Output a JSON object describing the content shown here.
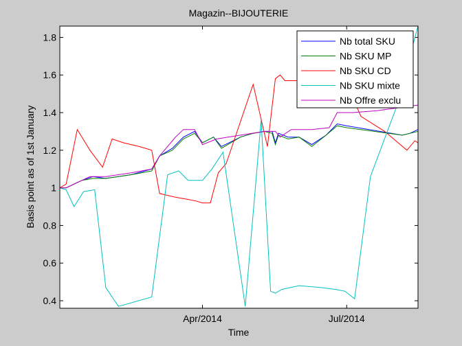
{
  "chart_data": {
    "type": "line",
    "title": "Magazin--BIJOUTERIE",
    "xlabel": "Time",
    "ylabel": "Basis point as of 1st January",
    "xlim": [
      "2014-01-01",
      "2014-08-15"
    ],
    "ylim": [
      0.36,
      1.86
    ],
    "x_ticks": [
      {
        "date": "2014-04-01",
        "label": "Apr/2014"
      },
      {
        "date": "2014-07-01",
        "label": "Jul/2014"
      }
    ],
    "y_ticks": [
      {
        "value": 0.4,
        "label": "0.4"
      },
      {
        "value": 0.6,
        "label": "0.6"
      },
      {
        "value": 0.8,
        "label": "0.8"
      },
      {
        "value": 1.0,
        "label": "1"
      },
      {
        "value": 1.2,
        "label": "1.2"
      },
      {
        "value": 1.4,
        "label": "1.4"
      },
      {
        "value": 1.6,
        "label": "1.6"
      },
      {
        "value": 1.8,
        "label": "1.8"
      }
    ],
    "grid": false,
    "legend_position": "top-right",
    "series": [
      {
        "name": "Nb total SKU",
        "color": "#0000ff",
        "points": [
          [
            "2014-01-01",
            1.0
          ],
          [
            "2014-01-05",
            1.0
          ],
          [
            "2014-01-15",
            1.04
          ],
          [
            "2014-01-22",
            1.06
          ],
          [
            "2014-01-30",
            1.05
          ],
          [
            "2014-02-15",
            1.07
          ],
          [
            "2014-02-28",
            1.1
          ],
          [
            "2014-03-05",
            1.17
          ],
          [
            "2014-03-13",
            1.21
          ],
          [
            "2014-03-20",
            1.27
          ],
          [
            "2014-03-27",
            1.3
          ],
          [
            "2014-04-01",
            1.24
          ],
          [
            "2014-04-08",
            1.27
          ],
          [
            "2014-04-13",
            1.22
          ],
          [
            "2014-04-25",
            1.27
          ],
          [
            "2014-05-03",
            1.29
          ],
          [
            "2014-05-10",
            1.3
          ],
          [
            "2014-05-15",
            1.3
          ],
          [
            "2014-05-17",
            1.24
          ],
          [
            "2014-05-19",
            1.29
          ],
          [
            "2014-05-25",
            1.27
          ],
          [
            "2014-06-01",
            1.27
          ],
          [
            "2014-06-09",
            1.23
          ],
          [
            "2014-06-18",
            1.28
          ],
          [
            "2014-06-25",
            1.34
          ],
          [
            "2014-07-01",
            1.33
          ],
          [
            "2014-08-05",
            1.28
          ],
          [
            "2014-08-10",
            1.29
          ],
          [
            "2014-08-15",
            1.31
          ]
        ]
      },
      {
        "name": "Nb SKU MP",
        "color": "#008000",
        "points": [
          [
            "2014-01-01",
            1.0
          ],
          [
            "2014-01-05",
            1.0
          ],
          [
            "2014-01-15",
            1.04
          ],
          [
            "2014-01-22",
            1.05
          ],
          [
            "2014-01-30",
            1.05
          ],
          [
            "2014-02-15",
            1.07
          ],
          [
            "2014-02-28",
            1.09
          ],
          [
            "2014-03-05",
            1.17
          ],
          [
            "2014-03-13",
            1.2
          ],
          [
            "2014-03-20",
            1.26
          ],
          [
            "2014-03-27",
            1.29
          ],
          [
            "2014-04-01",
            1.24
          ],
          [
            "2014-04-08",
            1.27
          ],
          [
            "2014-04-13",
            1.21
          ],
          [
            "2014-04-25",
            1.27
          ],
          [
            "2014-05-03",
            1.29
          ],
          [
            "2014-05-10",
            1.3
          ],
          [
            "2014-05-15",
            1.29
          ],
          [
            "2014-05-17",
            1.23
          ],
          [
            "2014-05-19",
            1.28
          ],
          [
            "2014-05-25",
            1.26
          ],
          [
            "2014-06-01",
            1.27
          ],
          [
            "2014-06-09",
            1.22
          ],
          [
            "2014-06-18",
            1.28
          ],
          [
            "2014-06-25",
            1.33
          ],
          [
            "2014-07-01",
            1.32
          ],
          [
            "2014-08-05",
            1.28
          ],
          [
            "2014-08-10",
            1.29
          ],
          [
            "2014-08-15",
            1.3
          ]
        ]
      },
      {
        "name": "Nb SKU CD",
        "color": "#ff0000",
        "points": [
          [
            "2014-01-01",
            1.0
          ],
          [
            "2014-01-05",
            1.02
          ],
          [
            "2014-01-12",
            1.31
          ],
          [
            "2014-01-20",
            1.2
          ],
          [
            "2014-01-28",
            1.11
          ],
          [
            "2014-02-03",
            1.26
          ],
          [
            "2014-02-10",
            1.24
          ],
          [
            "2014-02-20",
            1.22
          ],
          [
            "2014-02-28",
            1.2
          ],
          [
            "2014-03-05",
            0.97
          ],
          [
            "2014-03-10",
            0.96
          ],
          [
            "2014-03-15",
            0.95
          ],
          [
            "2014-03-22",
            0.94
          ],
          [
            "2014-03-28",
            0.93
          ],
          [
            "2014-04-01",
            0.92
          ],
          [
            "2014-04-06",
            0.92
          ],
          [
            "2014-04-11",
            1.08
          ],
          [
            "2014-04-16",
            1.13
          ],
          [
            "2014-05-03",
            1.55
          ],
          [
            "2014-05-12",
            1.22
          ],
          [
            "2014-05-17",
            1.58
          ],
          [
            "2014-05-20",
            1.6
          ],
          [
            "2014-05-23",
            1.57
          ],
          [
            "2014-06-01",
            1.57
          ],
          [
            "2014-06-05",
            1.58
          ],
          [
            "2014-06-15",
            1.67
          ],
          [
            "2014-06-25",
            1.6
          ],
          [
            "2014-07-01",
            1.55
          ],
          [
            "2014-07-10",
            1.38
          ],
          [
            "2014-07-25",
            1.3
          ],
          [
            "2014-08-08",
            1.2
          ],
          [
            "2014-08-13",
            1.25
          ],
          [
            "2014-08-15",
            1.24
          ]
        ]
      },
      {
        "name": "Nb SKU mixte",
        "color": "#00c0c0",
        "points": [
          [
            "2014-01-01",
            1.0
          ],
          [
            "2014-01-05",
            0.99
          ],
          [
            "2014-01-10",
            0.9
          ],
          [
            "2014-01-16",
            0.98
          ],
          [
            "2014-01-23",
            0.99
          ],
          [
            "2014-01-30",
            0.47
          ],
          [
            "2014-02-07",
            0.37
          ],
          [
            "2014-02-28",
            0.42
          ],
          [
            "2014-03-10",
            1.07
          ],
          [
            "2014-03-17",
            1.09
          ],
          [
            "2014-03-23",
            1.04
          ],
          [
            "2014-04-01",
            1.04
          ],
          [
            "2014-04-07",
            1.1
          ],
          [
            "2014-04-14",
            1.19
          ],
          [
            "2014-04-28",
            0.37
          ],
          [
            "2014-05-08",
            1.36
          ],
          [
            "2014-05-14",
            0.45
          ],
          [
            "2014-05-17",
            0.44
          ],
          [
            "2014-05-21",
            0.46
          ],
          [
            "2014-06-01",
            0.48
          ],
          [
            "2014-06-15",
            0.47
          ],
          [
            "2014-06-24",
            0.46
          ],
          [
            "2014-06-30",
            0.45
          ],
          [
            "2014-07-06",
            0.41
          ],
          [
            "2014-07-16",
            1.06
          ],
          [
            "2014-08-01",
            1.42
          ],
          [
            "2014-08-15",
            1.86
          ]
        ]
      },
      {
        "name": "Nb Offre exclu",
        "color": "#c000c0",
        "points": [
          [
            "2014-01-01",
            1.0
          ],
          [
            "2014-01-05",
            1.0
          ],
          [
            "2014-01-20",
            1.06
          ],
          [
            "2014-01-30",
            1.06
          ],
          [
            "2014-02-15",
            1.08
          ],
          [
            "2014-02-28",
            1.1
          ],
          [
            "2014-03-05",
            1.17
          ],
          [
            "2014-03-15",
            1.27
          ],
          [
            "2014-03-20",
            1.31
          ],
          [
            "2014-03-27",
            1.31
          ],
          [
            "2014-04-01",
            1.23
          ],
          [
            "2014-04-10",
            1.26
          ],
          [
            "2014-04-25",
            1.28
          ],
          [
            "2014-05-10",
            1.3
          ],
          [
            "2014-05-17",
            1.3
          ],
          [
            "2014-05-20",
            1.27
          ],
          [
            "2014-05-27",
            1.31
          ],
          [
            "2014-06-09",
            1.31
          ],
          [
            "2014-06-20",
            1.32
          ],
          [
            "2014-06-25",
            1.4
          ],
          [
            "2014-07-05",
            1.4
          ],
          [
            "2014-07-20",
            1.41
          ],
          [
            "2014-08-15",
            1.44
          ]
        ]
      }
    ]
  }
}
